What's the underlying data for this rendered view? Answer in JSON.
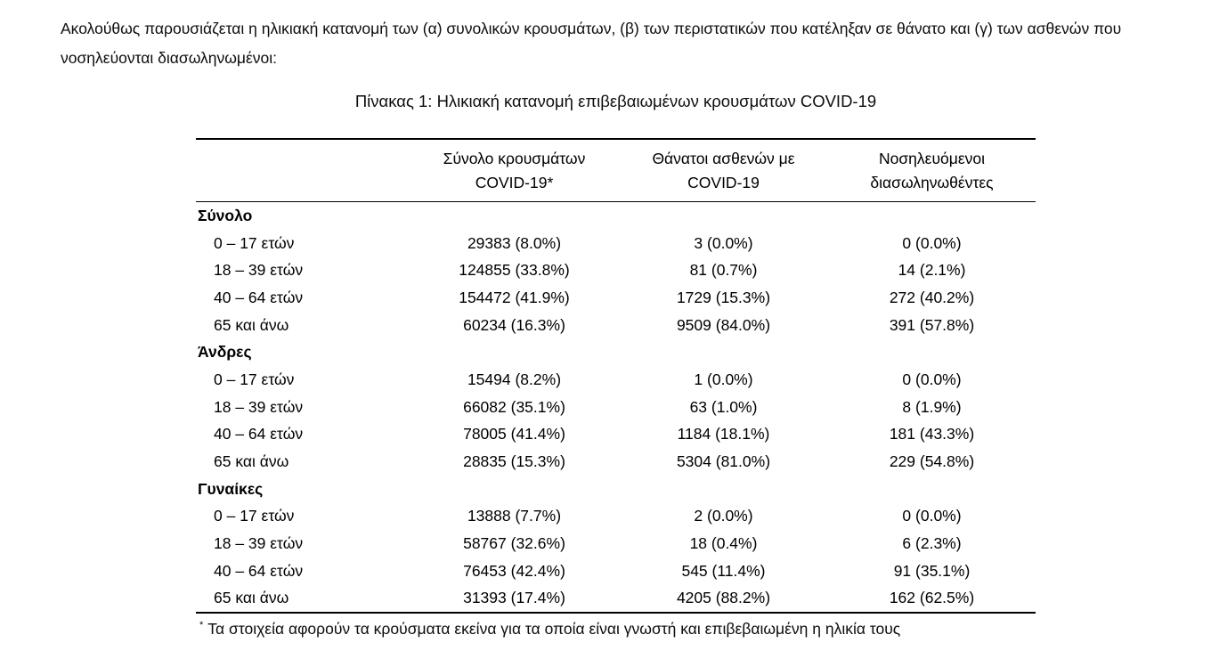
{
  "intro": "Ακολούθως παρουσιάζεται η ηλικιακή κατανομή των (α) συνολικών κρουσμάτων, (β) των περιστατικών που κατέληξαν σε θάνατο και (γ) των ασθενών που νοσηλεύονται διασωληνωμένοι:",
  "table": {
    "title": "Πίνακας 1: Ηλικιακή κατανομή επιβεβαιωμένων κρουσμάτων COVID-19",
    "columns": [
      "Σύνολο κρουσμάτων COVID-19*",
      "Θάνατοι ασθενών με COVID-19",
      "Νοσηλευόμενοι διασωληνωθέντες"
    ],
    "sections": [
      {
        "label": "Σύνολο",
        "rows": [
          {
            "age": "0 – 17 ετών",
            "cases": "29383 (8.0%)",
            "deaths": "3 (0.0%)",
            "intubated": "0 (0.0%)"
          },
          {
            "age": "18 – 39 ετών",
            "cases": "124855 (33.8%)",
            "deaths": "81 (0.7%)",
            "intubated": "14 (2.1%)"
          },
          {
            "age": "40 – 64 ετών",
            "cases": "154472 (41.9%)",
            "deaths": "1729 (15.3%)",
            "intubated": "272 (40.2%)"
          },
          {
            "age": "65 και άνω",
            "cases": "60234 (16.3%)",
            "deaths": "9509 (84.0%)",
            "intubated": "391 (57.8%)"
          }
        ]
      },
      {
        "label": "Άνδρες",
        "rows": [
          {
            "age": "0 – 17 ετών",
            "cases": "15494 (8.2%)",
            "deaths": "1 (0.0%)",
            "intubated": "0 (0.0%)"
          },
          {
            "age": "18 – 39 ετών",
            "cases": "66082 (35.1%)",
            "deaths": "63 (1.0%)",
            "intubated": "8 (1.9%)"
          },
          {
            "age": "40 – 64 ετών",
            "cases": "78005 (41.4%)",
            "deaths": "1184 (18.1%)",
            "intubated": "181 (43.3%)"
          },
          {
            "age": "65 και άνω",
            "cases": "28835 (15.3%)",
            "deaths": "5304 (81.0%)",
            "intubated": "229 (54.8%)"
          }
        ]
      },
      {
        "label": "Γυναίκες",
        "rows": [
          {
            "age": "0 – 17 ετών",
            "cases": "13888 (7.7%)",
            "deaths": "2 (0.0%)",
            "intubated": "0 (0.0%)"
          },
          {
            "age": "18 – 39 ετών",
            "cases": "58767 (32.6%)",
            "deaths": "18 (0.4%)",
            "intubated": "6 (2.3%)"
          },
          {
            "age": "40 – 64 ετών",
            "cases": "76453 (42.4%)",
            "deaths": "545 (11.4%)",
            "intubated": "91 (35.1%)"
          },
          {
            "age": "65 και άνω",
            "cases": "31393 (17.4%)",
            "deaths": "4205 (88.2%)",
            "intubated": "162 (62.5%)"
          }
        ]
      }
    ],
    "footnote_marker": "*",
    "footnote": "Τα στοιχεία αφορούν τα κρούσματα εκείνα για τα οποία είναι γνωστή και επιβεβαιωμένη η ηλικία τους"
  },
  "colors": {
    "text": "#000000",
    "rule": "#000000",
    "background": "#ffffff"
  }
}
